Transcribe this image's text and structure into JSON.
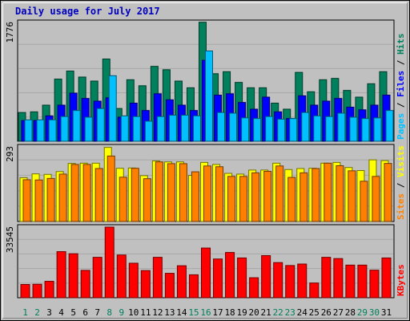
{
  "chart_data": {
    "type": "bar",
    "title": "Daily usage for July 2017",
    "categories": [
      "1",
      "2",
      "3",
      "4",
      "5",
      "6",
      "7",
      "8",
      "9",
      "10",
      "11",
      "12",
      "13",
      "14",
      "15",
      "16",
      "17",
      "18",
      "19",
      "20",
      "21",
      "22",
      "23",
      "24",
      "25",
      "26",
      "27",
      "28",
      "29",
      "30",
      "31"
    ],
    "weekend_days": [
      "1",
      "2",
      "8",
      "9",
      "15",
      "16",
      "22",
      "23",
      "29",
      "30"
    ],
    "colors": {
      "hits": "#00805c",
      "files": "#0000ff",
      "pages": "#00c0ff",
      "visits": "#ffff00",
      "sites": "#ff8000",
      "kbytes": "#ff0000",
      "title": "#0000c0",
      "weekday_label": "#000000",
      "weekend_label": "#00805c",
      "panel_bg": "#c0c0c0"
    },
    "panels": [
      {
        "name": "hits-files-pages",
        "ymax": 1776,
        "ymax_label": "1776",
        "legend": [
          {
            "text": "Pages",
            "color": "#00c0ff"
          },
          {
            "text": "Files",
            "color": "#0000ff"
          },
          {
            "text": "Hits",
            "color": "#00805c"
          }
        ],
        "series": [
          {
            "name": "Hits",
            "values": [
              430,
              440,
              540,
              930,
              1050,
              960,
              900,
              1230,
              490,
              920,
              830,
              1120,
              1070,
              900,
              800,
              1780,
              1010,
              1040,
              880,
              800,
              800,
              570,
              480,
              1030,
              740,
              920,
              940,
              760,
              660,
              860,
              1040
            ]
          },
          {
            "name": "Files",
            "values": [
              310,
              310,
              380,
              540,
              720,
              640,
              600,
              650,
              360,
              570,
              460,
              710,
              620,
              540,
              460,
              1210,
              690,
              710,
              580,
              480,
              660,
              440,
              340,
              680,
              540,
              600,
              640,
              510,
              470,
              540,
              690
            ]
          },
          {
            "name": "Pages",
            "values": [
              320,
              320,
              320,
              370,
              460,
              360,
              490,
              980,
              380,
              370,
              300,
              370,
              390,
              390,
              380,
              1350,
              430,
              420,
              350,
              340,
              370,
              330,
              340,
              430,
              380,
              370,
              420,
              360,
              340,
              350,
              460
            ]
          }
        ]
      },
      {
        "name": "visits-sites",
        "ymax": 293,
        "ymax_label": "293",
        "legend": [
          {
            "text": "Sites",
            "color": "#ff8000"
          },
          {
            "text": "Visits",
            "color": "#ffff00"
          }
        ],
        "series": [
          {
            "name": "Visits",
            "values": [
              172,
              187,
              185,
              196,
              228,
              229,
              229,
              291,
              209,
              210,
              180,
              238,
              234,
              234,
              181,
              232,
              224,
              189,
              186,
              202,
              202,
              229,
              204,
              208,
              209,
              229,
              232,
              212,
              200,
              242,
              239
            ]
          },
          {
            "name": "Sites",
            "values": [
              164,
              163,
              169,
              186,
              224,
              224,
              208,
              257,
              174,
              209,
              168,
              234,
              227,
              227,
              195,
              218,
              215,
              177,
              177,
              191,
              197,
              218,
              173,
              191,
              208,
              229,
              219,
              199,
              158,
              177,
              228
            ]
          }
        ]
      },
      {
        "name": "kbytes",
        "ymax": 33545,
        "ymax_label": "33545",
        "legend": [
          {
            "text": "KBytes",
            "color": "#ff0000"
          }
        ],
        "series": [
          {
            "name": "KBytes",
            "values": [
              6300,
              6400,
              7800,
              21900,
              20900,
              13000,
              19200,
              33545,
              20300,
              16400,
              12900,
              19200,
              11600,
              15200,
              10900,
              23600,
              18400,
              21500,
              18900,
              9500,
              20000,
              16700,
              15300,
              16000,
              7000,
              19200,
              18600,
              15500,
              15500,
              13100,
              18900
            ]
          }
        ]
      }
    ]
  }
}
